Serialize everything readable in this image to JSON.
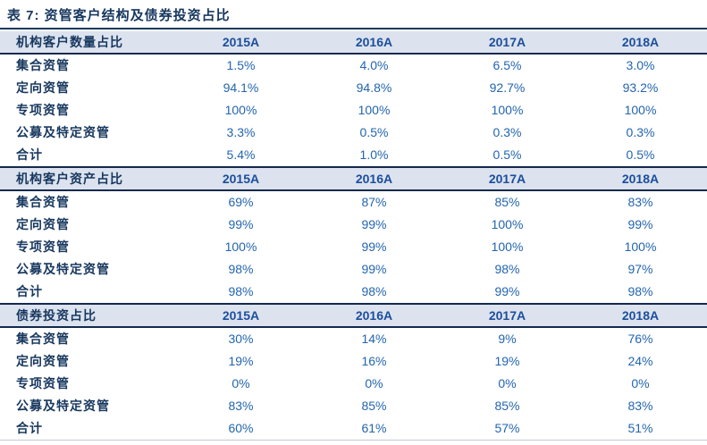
{
  "chart_data": {
    "type": "table",
    "title": "表 7: 资管客户结构及债券投资占比",
    "columns": [
      "2015A",
      "2016A",
      "2017A",
      "2018A"
    ],
    "sections": [
      {
        "header": "机构客户数量占比",
        "rows": [
          {
            "label": "集合资管",
            "values": [
              "1.5%",
              "4.0%",
              "6.5%",
              "3.0%"
            ]
          },
          {
            "label": "定向资管",
            "values": [
              "94.1%",
              "94.8%",
              "92.7%",
              "93.2%"
            ]
          },
          {
            "label": "专项资管",
            "values": [
              "100%",
              "100%",
              "100%",
              "100%"
            ]
          },
          {
            "label": "公募及特定资管",
            "values": [
              "3.3%",
              "0.5%",
              "0.3%",
              "0.3%"
            ]
          },
          {
            "label": "合计",
            "values": [
              "5.4%",
              "1.0%",
              "0.5%",
              "0.5%"
            ]
          }
        ]
      },
      {
        "header": "机构客户资产占比",
        "rows": [
          {
            "label": "集合资管",
            "values": [
              "69%",
              "87%",
              "85%",
              "83%"
            ]
          },
          {
            "label": "定向资管",
            "values": [
              "99%",
              "99%",
              "100%",
              "99%"
            ]
          },
          {
            "label": "专项资管",
            "values": [
              "100%",
              "99%",
              "100%",
              "100%"
            ]
          },
          {
            "label": "公募及特定资管",
            "values": [
              "98%",
              "99%",
              "98%",
              "97%"
            ]
          },
          {
            "label": "合计",
            "values": [
              "98%",
              "98%",
              "99%",
              "98%"
            ]
          }
        ]
      },
      {
        "header": "债券投资占比",
        "rows": [
          {
            "label": "集合资管",
            "values": [
              "30%",
              "14%",
              "9%",
              "76%"
            ]
          },
          {
            "label": "定向资管",
            "values": [
              "19%",
              "16%",
              "19%",
              "24%"
            ]
          },
          {
            "label": "专项资管",
            "values": [
              "0%",
              "0%",
              "0%",
              "0%"
            ]
          },
          {
            "label": "公募及特定资管",
            "values": [
              "83%",
              "85%",
              "85%",
              "83%"
            ]
          },
          {
            "label": "合计",
            "values": [
              "60%",
              "61%",
              "57%",
              "51%"
            ]
          }
        ]
      }
    ]
  },
  "colors": {
    "title_navy": "#17375E",
    "year_header_blue": "#1C4E9C",
    "value_blue": "#2365AF",
    "section_header_bg": "#DCE3EF",
    "rule_dark": "#14294E",
    "bottom_rule_gray": "#C3C8D2"
  }
}
